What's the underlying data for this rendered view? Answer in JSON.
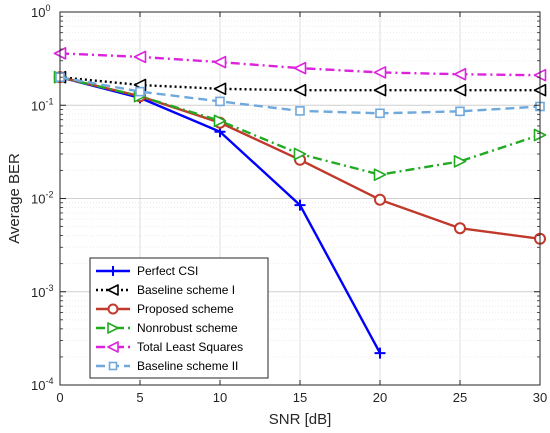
{
  "chart_data": {
    "type": "line",
    "title": "",
    "xlabel": "SNR [dB]",
    "ylabel": "Average BER",
    "x_scale": "linear",
    "y_scale": "log",
    "xlim": [
      0,
      30
    ],
    "ylim": [
      0.0001,
      1
    ],
    "grid": true,
    "legend_position": "bottom-left",
    "x_ticks": [
      0,
      5,
      10,
      15,
      20,
      25,
      30
    ],
    "x_tick_labels": [
      "0",
      "5",
      "10",
      "15",
      "20",
      "25",
      "30"
    ],
    "y_ticks": [
      0.0001,
      0.001,
      0.01,
      0.1,
      1
    ],
    "y_tick_labels": [
      {
        "base": "10",
        "exp": "-4"
      },
      {
        "base": "10",
        "exp": "-3"
      },
      {
        "base": "10",
        "exp": "-2"
      },
      {
        "base": "10",
        "exp": "-1"
      },
      {
        "base": "10",
        "exp": "0"
      }
    ],
    "series": [
      {
        "name": "Perfect CSI",
        "color": "#0000ff",
        "line_style": "solid",
        "marker": "plus",
        "x": [
          0,
          5,
          10,
          15,
          20
        ],
        "y": [
          0.2,
          0.12,
          0.052,
          0.0085,
          0.00022
        ]
      },
      {
        "name": "Baseline scheme I",
        "color": "#000000",
        "line_style": "dotted",
        "marker": "triangle-left",
        "x": [
          0,
          5,
          10,
          15,
          20,
          25,
          30
        ],
        "y": [
          0.2,
          0.165,
          0.15,
          0.145,
          0.145,
          0.145,
          0.145
        ]
      },
      {
        "name": "Proposed scheme",
        "color": "#c0392b",
        "line_style": "solid",
        "marker": "circle",
        "x": [
          0,
          5,
          10,
          15,
          20,
          25,
          30
        ],
        "y": [
          0.2,
          0.125,
          0.065,
          0.026,
          0.0097,
          0.0048,
          0.0037
        ]
      },
      {
        "name": "Nonrobust scheme",
        "color": "#22aa22",
        "line_style": "dashdot",
        "marker": "triangle-right",
        "x": [
          0,
          5,
          10,
          15,
          20,
          25,
          30
        ],
        "y": [
          0.2,
          0.125,
          0.068,
          0.03,
          0.018,
          0.025,
          0.048
        ]
      },
      {
        "name": "Total Least Squares",
        "color": "#dd22dd",
        "line_style": "dashdot",
        "marker": "triangle-left",
        "x": [
          0,
          5,
          10,
          15,
          20,
          25,
          30
        ],
        "y": [
          0.36,
          0.33,
          0.29,
          0.25,
          0.225,
          0.215,
          0.21
        ]
      },
      {
        "name": "Baseline scheme II",
        "color": "#6fa8dc",
        "line_style": "dashed",
        "marker": "square",
        "x": [
          0,
          5,
          10,
          15,
          20,
          25,
          30
        ],
        "y": [
          0.2,
          0.14,
          0.11,
          0.087,
          0.082,
          0.086,
          0.097
        ]
      }
    ]
  }
}
